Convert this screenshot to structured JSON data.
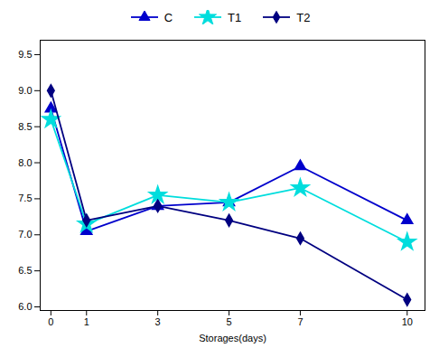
{
  "chart_data": {
    "type": "line",
    "x": [
      0,
      1,
      3,
      5,
      7,
      10
    ],
    "series": [
      {
        "name": "C",
        "color": "#0000cc",
        "marker": "triangle",
        "values": [
          8.75,
          7.05,
          7.4,
          7.45,
          7.95,
          7.2
        ]
      },
      {
        "name": "T1",
        "color": "#00dddd",
        "marker": "star",
        "values": [
          8.6,
          7.15,
          7.55,
          7.45,
          7.65,
          6.9
        ]
      },
      {
        "name": "T2",
        "color": "#000080",
        "marker": "diamond",
        "values": [
          9.0,
          7.2,
          7.4,
          7.2,
          6.95,
          6.1
        ]
      }
    ],
    "xlabel": "Storages(days)",
    "xlim": [
      -0.3,
      10.5
    ],
    "xticks": [
      0,
      1,
      3,
      5,
      7,
      10
    ],
    "ylim": [
      5.95,
      9.7
    ],
    "yticks": [
      {
        "value": 6.0,
        "label": "6.0"
      },
      6.5,
      {
        "value": 7.0,
        "label": "7.0"
      },
      7.5,
      {
        "value": 8.0,
        "label": "8.0"
      },
      8.5,
      {
        "value": 9.0,
        "label": "9.0"
      },
      9.5
    ],
    "grid": false,
    "legend": "top"
  }
}
